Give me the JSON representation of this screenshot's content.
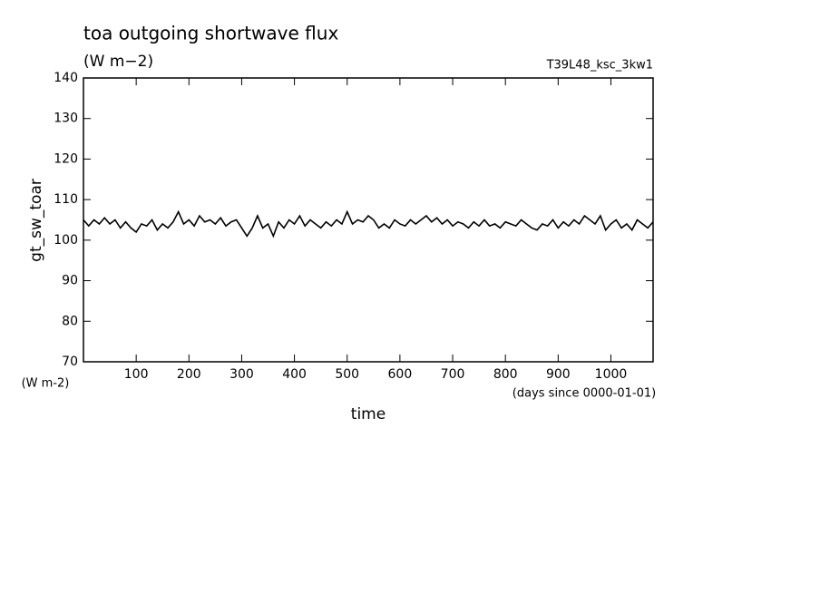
{
  "chart_data": {
    "type": "line",
    "title": "toa outgoing shortwave flux",
    "subtitle": "(W m−2)",
    "annotation": "T39L48_ksc_3kw1",
    "y_label": "gt_sw_toar",
    "y_units": "(W m-2)",
    "x_label": "time",
    "x_units": "(days since 0000-01-01)",
    "xlim": [
      0,
      1080
    ],
    "ylim": [
      70,
      140
    ],
    "xticks": [
      100,
      200,
      300,
      400,
      500,
      600,
      700,
      800,
      900,
      1000
    ],
    "yticks": [
      70,
      80,
      90,
      100,
      110,
      120,
      130,
      140
    ],
    "x": [
      0,
      10,
      20,
      30,
      40,
      50,
      60,
      70,
      80,
      90,
      100,
      110,
      120,
      130,
      140,
      150,
      160,
      170,
      180,
      190,
      200,
      210,
      220,
      230,
      240,
      250,
      260,
      270,
      280,
      290,
      300,
      310,
      320,
      330,
      340,
      350,
      360,
      370,
      380,
      390,
      400,
      410,
      420,
      430,
      440,
      450,
      460,
      470,
      480,
      490,
      500,
      510,
      520,
      530,
      540,
      550,
      560,
      570,
      580,
      590,
      600,
      610,
      620,
      630,
      640,
      650,
      660,
      670,
      680,
      690,
      700,
      710,
      720,
      730,
      740,
      750,
      760,
      770,
      780,
      790,
      800,
      810,
      820,
      830,
      840,
      850,
      860,
      870,
      880,
      890,
      900,
      910,
      920,
      930,
      940,
      950,
      960,
      970,
      980,
      990,
      1000,
      1010,
      1020,
      1030,
      1040,
      1050,
      1060,
      1070,
      1080
    ],
    "series": [
      {
        "color": "#000000",
        "values": [
          105,
          103.5,
          105,
          104,
          105.5,
          104,
          105,
          103,
          104.5,
          103,
          102,
          104,
          103.5,
          105,
          102.5,
          104,
          103,
          104.5,
          107,
          104,
          105,
          103.5,
          106,
          104.5,
          105,
          104,
          105.5,
          103.5,
          104.5,
          105,
          103,
          101,
          103,
          106,
          103,
          104,
          101,
          104.5,
          103,
          105,
          104,
          106,
          103.5,
          105,
          104,
          103,
          104.5,
          103.5,
          105,
          104,
          107,
          104,
          105,
          104.5,
          106,
          105,
          103,
          104,
          103,
          105,
          104,
          103.5,
          105,
          104,
          105,
          106,
          104.5,
          105.5,
          104,
          105,
          103.5,
          104.5,
          104,
          103,
          104.5,
          103.5,
          105,
          103.5,
          104,
          103,
          104.5,
          104,
          103.5,
          105,
          104,
          103,
          102.5,
          104,
          103.5,
          105,
          103,
          104.5,
          103.5,
          105,
          104,
          106,
          105,
          104,
          106,
          102.5,
          104,
          105,
          103,
          104,
          102.5,
          105,
          104,
          103,
          104.5
        ]
      }
    ]
  }
}
